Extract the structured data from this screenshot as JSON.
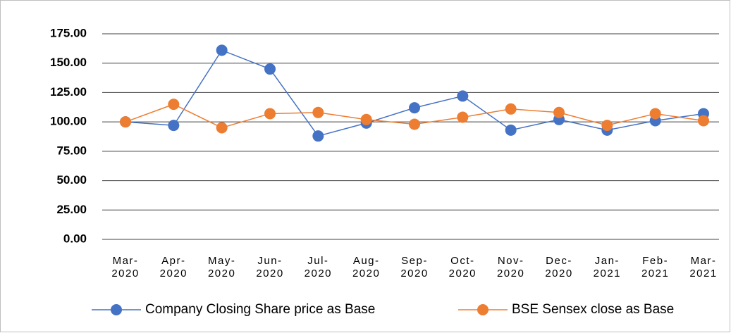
{
  "chart_data": {
    "type": "line",
    "categories": [
      "Mar-2020",
      "Apr-2020",
      "May-2020",
      "Jun-2020",
      "Jul-2020",
      "Aug-2020",
      "Sep-2020",
      "Oct-2020",
      "Nov-2020",
      "Dec-2020",
      "Jan-2021",
      "Feb-2021",
      "Mar-2021"
    ],
    "series": [
      {
        "name": "Company Closing Share price as Base",
        "color": "#4472c4",
        "values": [
          100,
          97,
          161,
          145,
          88,
          99,
          112,
          122,
          93,
          102,
          93,
          101,
          107
        ]
      },
      {
        "name": "BSE Sensex close as Base",
        "color": "#ed7d31",
        "values": [
          100,
          115,
          95,
          107,
          108,
          102,
          98,
          104,
          111,
          108,
          97,
          107,
          101
        ]
      }
    ],
    "ylim": [
      0,
      175
    ],
    "yticks": [
      {
        "value": 0,
        "label": "0.00"
      },
      {
        "value": 25,
        "label": "25.00"
      },
      {
        "value": 50,
        "label": "50.00"
      },
      {
        "value": 75,
        "label": "75.00"
      },
      {
        "value": 100,
        "label": "100.00"
      },
      {
        "value": 125,
        "label": "125.00"
      },
      {
        "value": 150,
        "label": "150.00"
      },
      {
        "value": 175,
        "label": "175.00"
      }
    ],
    "grid": true,
    "legend": "bottom"
  }
}
